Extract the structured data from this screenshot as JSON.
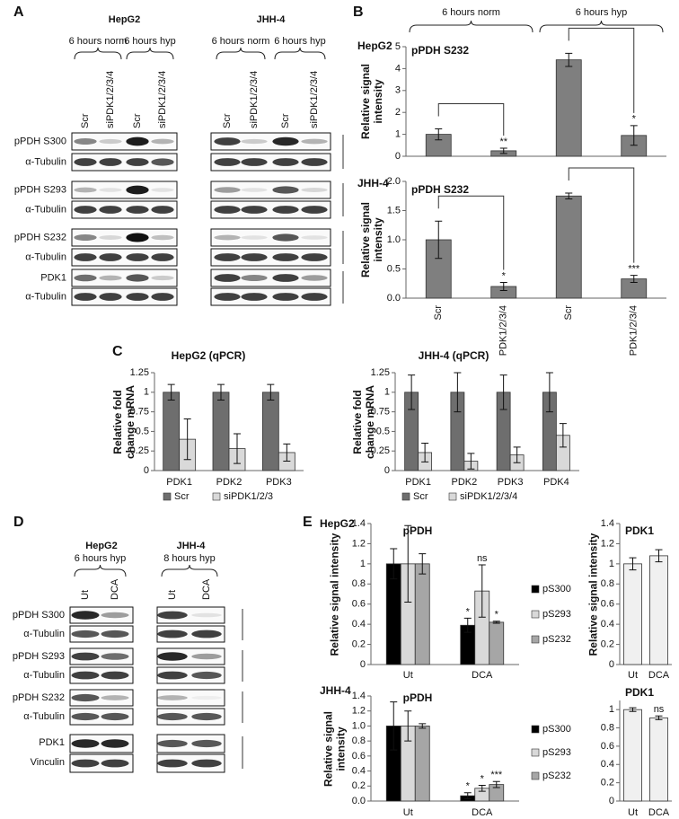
{
  "panel_labels": [
    "A",
    "B",
    "C",
    "D",
    "E"
  ],
  "blots": [
    {
      "lines": [
        {
          "name": "HepG2",
          "groups": [
            "6 hours norm",
            "6 hours hyp"
          ],
          "lanes": [
            "Scr",
            "siPDK1/2/3/4",
            "Scr",
            "siPDK1/2/3/4"
          ]
        },
        {
          "name": "JHH-4",
          "groups": [
            "6 hours norm",
            "6 hours hyp"
          ],
          "lanes": [
            "Scr",
            "siPDK1/2/3/4",
            "Scr",
            "siPDK1/2/3/4"
          ]
        }
      ],
      "rows": [
        "pPDH S300",
        "α-Tubulin",
        "pPDH S293",
        "α-Tubulin",
        "pPDH S232",
        "α-Tubulin",
        "PDK1",
        "α-Tubulin"
      ]
    },
    {
      "lines": [
        {
          "name": "HepG2",
          "groups": [
            "6 hours hyp"
          ],
          "lanes": [
            "Ut",
            "DCA"
          ]
        },
        {
          "name": "JHH-4",
          "groups": [
            "8 hours hyp"
          ],
          "lanes": [
            "Ut",
            "DCA"
          ]
        }
      ],
      "rows": [
        "pPDH S300",
        "α-Tubulin",
        "pPDH S293",
        "α-Tubulin",
        "pPDH S232",
        "α-Tubulin",
        "PDK1",
        "Vinculin"
      ]
    }
  ],
  "chart_data": [
    {
      "type": "bar",
      "label": "HepG2",
      "title": "pPDH S232",
      "ylabel": "Relative signal intensity",
      "groups": [
        "6 hours norm",
        "6 hours hyp"
      ],
      "values": [
        1.0,
        0.25,
        4.4,
        0.95
      ],
      "errors": [
        0.25,
        0.12,
        0.3,
        0.45
      ],
      "significance": [
        null,
        "**",
        null,
        "*"
      ],
      "color": "#7f7f7f",
      "ylim": [
        0,
        5
      ],
      "yticks": [
        0,
        1,
        2,
        3,
        4,
        5
      ]
    },
    {
      "type": "bar",
      "label": "JHH-4",
      "title": "pPDH S232",
      "ylabel": "Relative signal intensity",
      "categories": [
        "Scr",
        "PDK1/2/3/4",
        "Scr",
        "PDK1/2/3/4"
      ],
      "values": [
        1.0,
        0.2,
        1.75,
        0.33
      ],
      "errors": [
        0.32,
        0.07,
        0.05,
        0.06
      ],
      "significance": [
        null,
        "*",
        null,
        "***"
      ],
      "color": "#7f7f7f",
      "ylim": [
        0,
        2
      ],
      "yticks": [
        {
          "value": 0,
          "label": "0.0"
        },
        {
          "value": 0.5,
          "label": "0.5"
        },
        {
          "value": 1,
          "label": "1.0"
        },
        {
          "value": 1.5,
          "label": "1.5"
        },
        {
          "value": 2,
          "label": "2.0"
        }
      ]
    },
    {
      "type": "bar",
      "title": "HepG2 (qPCR)",
      "ylabel": "Relative fold change mRNA",
      "categories": [
        "PDK1",
        "PDK2",
        "PDK3"
      ],
      "series": [
        {
          "name": "Scr",
          "color": "#6e6e6e",
          "values": [
            1,
            1,
            1
          ],
          "errors": [
            0.1,
            0.1,
            0.1
          ]
        },
        {
          "name": "siPDK1/2/3",
          "color": "#d9d9d9",
          "values": [
            0.4,
            0.28,
            0.23
          ],
          "errors": [
            0.26,
            0.19,
            0.11
          ]
        }
      ],
      "ylim": [
        0,
        1.25
      ],
      "yticks": [
        0,
        0.25,
        0.5,
        0.75,
        1,
        1.25
      ],
      "legend": "bottom"
    },
    {
      "type": "bar",
      "title": "JHH-4 (qPCR)",
      "ylabel": "Relative fold change mRNA",
      "categories": [
        "PDK1",
        "PDK2",
        "PDK3",
        "PDK4"
      ],
      "series": [
        {
          "name": "Scr",
          "color": "#6e6e6e",
          "values": [
            1,
            1,
            1,
            1
          ],
          "errors": [
            0.22,
            0.25,
            0.22,
            0.25
          ]
        },
        {
          "name": "siPDK1/2/3/4",
          "color": "#d9d9d9",
          "values": [
            0.23,
            0.12,
            0.2,
            0.45
          ],
          "errors": [
            0.12,
            0.1,
            0.1,
            0.15
          ]
        }
      ],
      "ylim": [
        0,
        1.25
      ],
      "yticks": [
        0,
        0.25,
        0.5,
        0.75,
        1,
        1.25
      ],
      "legend": "bottom"
    },
    {
      "type": "bar",
      "label": "HepG2",
      "title": "pPDH",
      "ylabel": "Relative signal intensity",
      "categories": [
        "Ut",
        "DCA"
      ],
      "series": [
        {
          "name": "pS300",
          "color": "#000000",
          "values": [
            1.0,
            0.39
          ],
          "errors": [
            0.15,
            0.07
          ],
          "significance": [
            null,
            "*"
          ]
        },
        {
          "name": "pS293",
          "color": "#d9d9d9",
          "values": [
            1.0,
            0.73
          ],
          "errors": [
            0.38,
            0.26
          ],
          "significance": [
            null,
            "ns"
          ]
        },
        {
          "name": "pS232",
          "color": "#a6a6a6",
          "values": [
            1.0,
            0.42
          ],
          "errors": [
            0.1,
            0.01
          ],
          "significance": [
            null,
            "*"
          ]
        }
      ],
      "ylim": [
        0,
        1.4
      ],
      "yticks": [
        0,
        0.2,
        0.4,
        0.6,
        0.8,
        1,
        1.2,
        1.4
      ],
      "legend": "right"
    },
    {
      "type": "bar",
      "title": "PDK1",
      "ylabel": "Relative signal intensity",
      "categories": [
        "Ut",
        "DCA"
      ],
      "values": [
        1.0,
        1.08
      ],
      "errors": [
        0.06,
        0.06
      ],
      "color": "#f0f0f0",
      "ylim": [
        0,
        1.4
      ],
      "yticks": [
        0,
        0.2,
        0.4,
        0.6,
        0.8,
        1,
        1.2,
        1.4
      ]
    },
    {
      "type": "bar",
      "label": "JHH-4",
      "title": "pPDH",
      "ylabel": "Relative signal intensity",
      "categories": [
        "Ut",
        "DCA"
      ],
      "series": [
        {
          "name": "pS300",
          "color": "#000000",
          "values": [
            1.0,
            0.07
          ],
          "errors": [
            0.32,
            0.04
          ],
          "significance": [
            null,
            "*"
          ]
        },
        {
          "name": "pS293",
          "color": "#d9d9d9",
          "values": [
            1.0,
            0.17
          ],
          "errors": [
            0.2,
            0.04
          ],
          "significance": [
            null,
            "*"
          ]
        },
        {
          "name": "pS232",
          "color": "#a6a6a6",
          "values": [
            1.0,
            0.22
          ],
          "errors": [
            0.03,
            0.04
          ],
          "significance": [
            null,
            "***"
          ]
        }
      ],
      "ylim": [
        0,
        1.4
      ],
      "yticks": [
        {
          "value": 0,
          "label": "0.0"
        },
        {
          "value": 0.2,
          "label": "0.2"
        },
        {
          "value": 0.4,
          "label": "0.4"
        },
        {
          "value": 0.6,
          "label": "0.6"
        },
        {
          "value": 0.8,
          "label": "0.8"
        },
        {
          "value": 1,
          "label": "1.0"
        },
        {
          "value": 1.2,
          "label": "1.2"
        },
        {
          "value": 1.4,
          "label": "1.4"
        }
      ],
      "legend": "right"
    },
    {
      "type": "bar",
      "title": "PDK1",
      "categories": [
        "Ut",
        "DCA"
      ],
      "values": [
        1.0,
        0.91
      ],
      "errors": [
        0.02,
        0.02
      ],
      "significance": [
        null,
        "ns"
      ],
      "color": "#f0f0f0",
      "ylim": [
        0,
        1.1
      ],
      "yticks": [
        0,
        0.2,
        0.4,
        0.6,
        0.8,
        1
      ]
    }
  ]
}
